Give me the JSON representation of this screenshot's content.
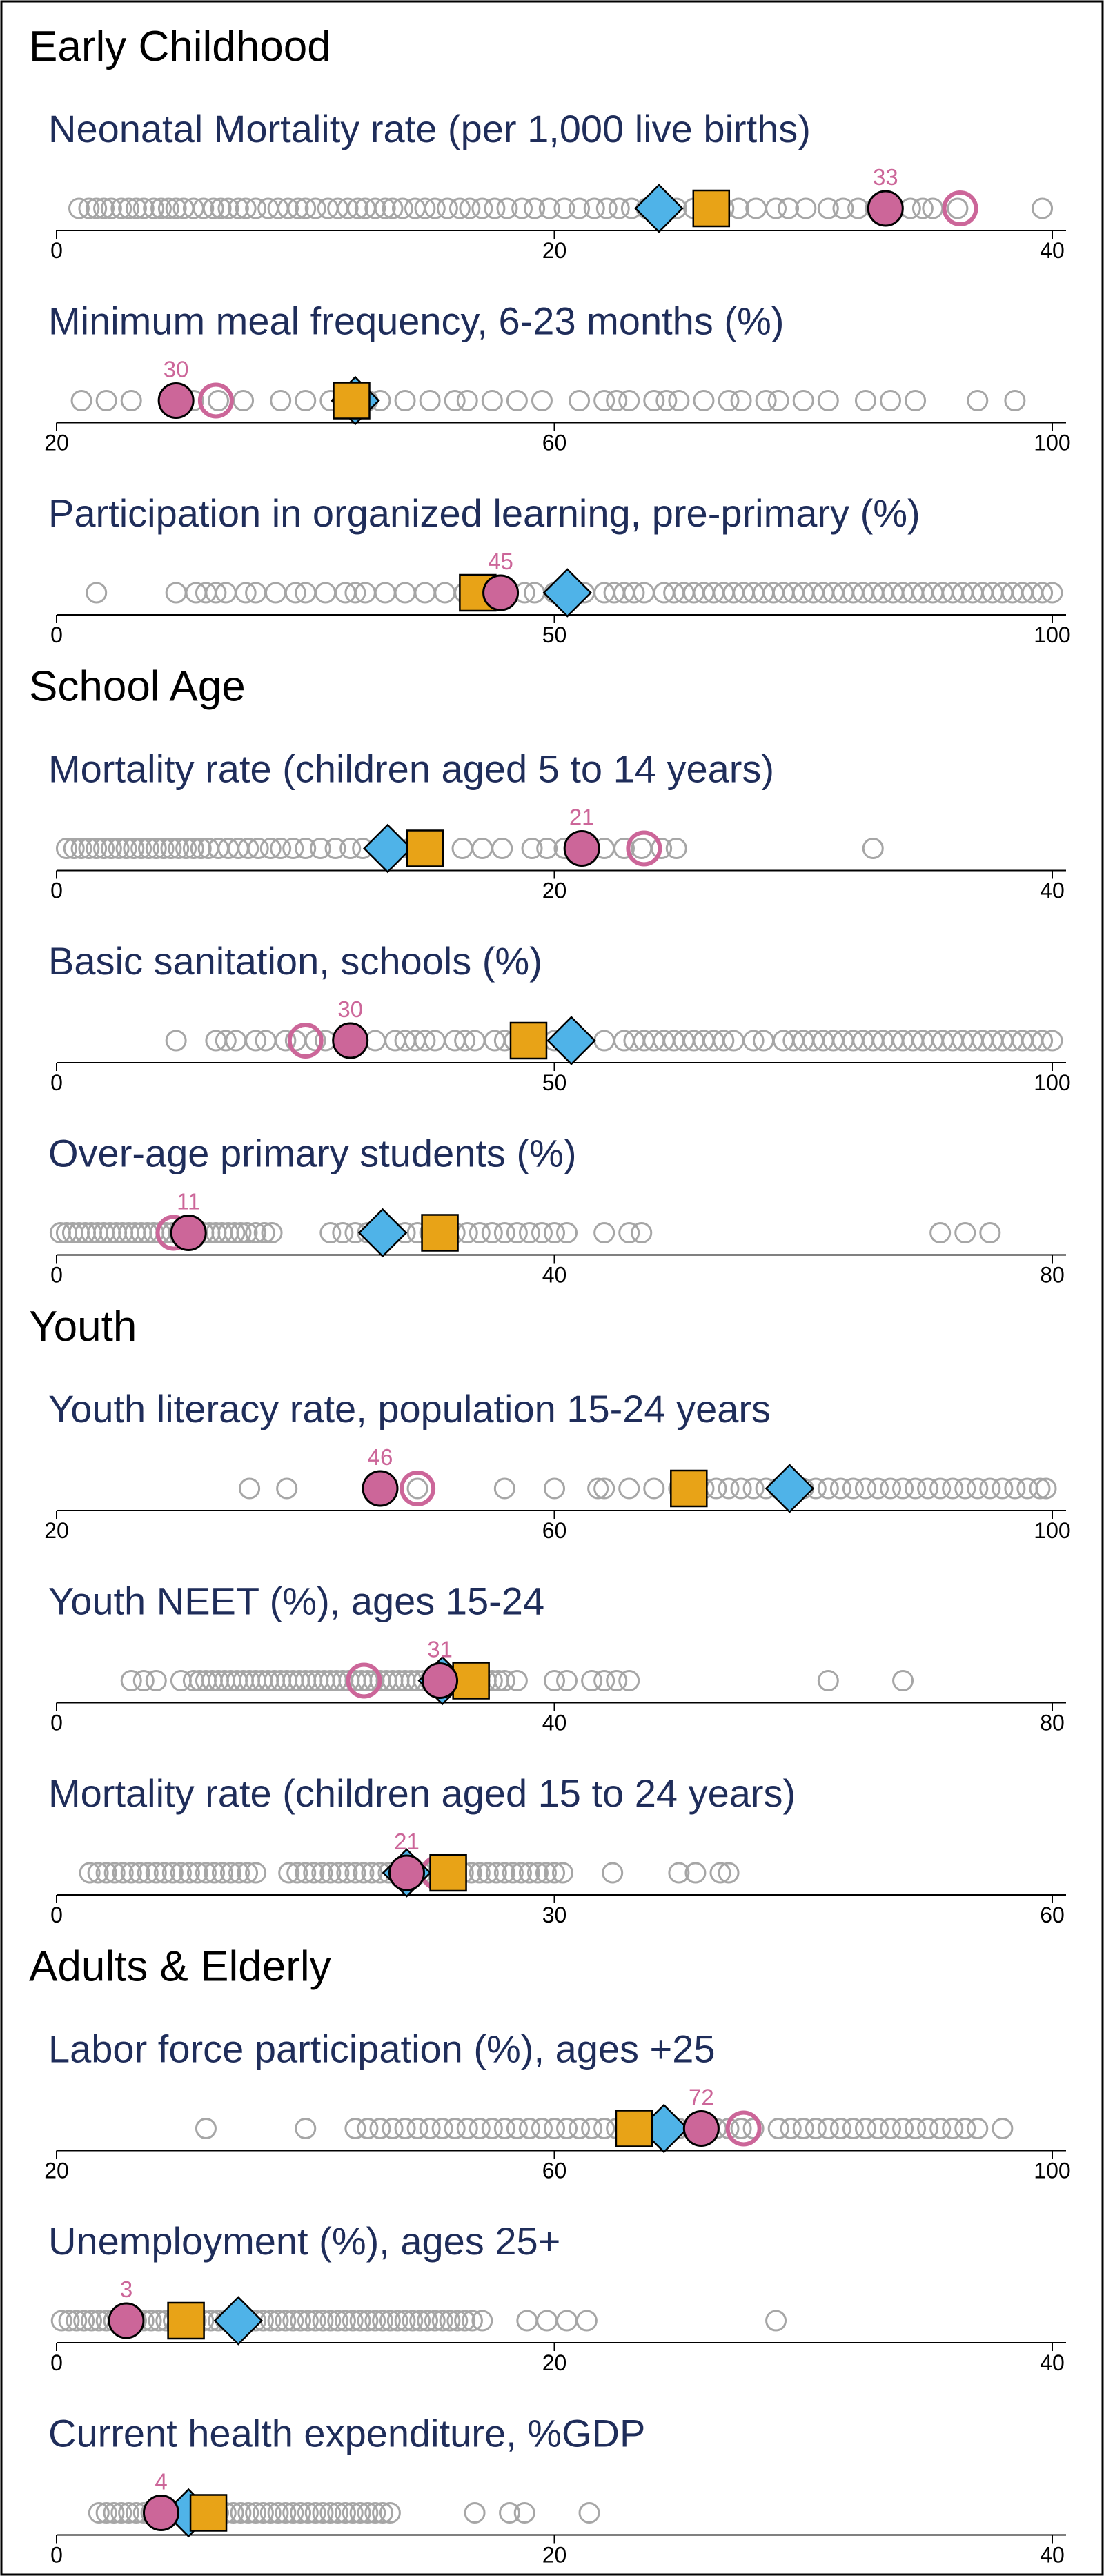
{
  "colors": {
    "others": "#a6a6a6",
    "country": "#cc6699",
    "diamond": "#4fb3e8",
    "square": "#e8a317",
    "title": "#1f2d5a",
    "frame": "#000000"
  },
  "chart_data": {
    "type": "scatter",
    "sections": [
      {
        "title": "Early Childhood",
        "panels": [
          {
            "title": "Neonatal Mortality rate (per 1,000 live births)",
            "xlim": [
              0,
              40
            ],
            "ticks": [
              "0",
              "20",
              "40"
            ],
            "others": [
              0.9,
              1.3,
              1.6,
              1.9,
              2.2,
              2.6,
              2.9,
              3.2,
              3.5,
              3.9,
              4.2,
              4.5,
              4.8,
              5.1,
              5.5,
              5.9,
              6.3,
              6.6,
              6.9,
              7.3,
              7.6,
              8.0,
              8.5,
              8.9,
              9.3,
              9.7,
              10.0,
              10.4,
              10.9,
              11.3,
              11.7,
              12.1,
              12.4,
              12.8,
              13.2,
              13.5,
              13.9,
              14.4,
              14.8,
              15.2,
              15.7,
              16.2,
              16.6,
              17.1,
              17.6,
              18.1,
              18.7,
              19.2,
              19.8,
              20.4,
              21.0,
              21.6,
              22.1,
              22.6,
              23.1,
              23.7,
              24.3,
              24.9,
              25.6,
              26.2,
              26.8,
              27.4,
              28.1,
              28.9,
              29.4,
              30.1,
              31.0,
              31.6,
              32.2,
              32.9,
              33.6,
              34.3,
              34.8,
              35.2,
              36.2,
              39.6
            ],
            "country": {
              "value": 33.3,
              "label": "33"
            },
            "hollow": 36.3,
            "diamond": 24.2,
            "square": 26.3
          },
          {
            "title": "Minimum meal frequency, 6-23 months (%)",
            "xlim": [
              20,
              100
            ],
            "ticks": [
              "20",
              "60",
              "100"
            ],
            "others": [
              22,
              24,
              26,
              29,
              31,
              33,
              35,
              38,
              40,
              42,
              43,
              45,
              46,
              48,
              50,
              52,
              53,
              55,
              57,
              59,
              62,
              64,
              65,
              66,
              68,
              69,
              70,
              72,
              74,
              75,
              77,
              78,
              80,
              82,
              85,
              87,
              89,
              94,
              97
            ],
            "country": {
              "value": 29.6,
              "label": "30"
            },
            "hollow": 32.8,
            "diamond": 44.0,
            "square": 43.7
          },
          {
            "title": "Participation in organized learning,  pre-primary (%)",
            "xlim": [
              0,
              100
            ],
            "ticks": [
              "0",
              "50",
              "100"
            ],
            "others": [
              4,
              12,
              14,
              15,
              16,
              17,
              19,
              20,
              22,
              24,
              25,
              27,
              29,
              30,
              31,
              33,
              35,
              37,
              39,
              41,
              43,
              45,
              47,
              48,
              50,
              52,
              53,
              55,
              56,
              57,
              58,
              59,
              61,
              62,
              63,
              64,
              65,
              66,
              67,
              68,
              69,
              70,
              71,
              72,
              73,
              74,
              75,
              76,
              77,
              78,
              79,
              80,
              81,
              82,
              83,
              84,
              85,
              86,
              87,
              88,
              89,
              90,
              91,
              92,
              93,
              94,
              95,
              96,
              97,
              98,
              99,
              100
            ],
            "country": {
              "value": 44.6,
              "label": "45"
            },
            "hollow": 42.7,
            "diamond": 51.3,
            "square": 42.3
          }
        ]
      },
      {
        "title": "School Age",
        "panels": [
          {
            "title": "Mortality rate (children aged 5 to 14 years)",
            "xlim": [
              0,
              40
            ],
            "ticks": [
              "0",
              "20",
              "40"
            ],
            "others": [
              0.4,
              0.7,
              1.0,
              1.3,
              1.6,
              1.9,
              2.2,
              2.5,
              2.8,
              3.1,
              3.4,
              3.7,
              4.0,
              4.3,
              4.6,
              4.9,
              5.2,
              5.5,
              5.8,
              6.1,
              6.5,
              6.9,
              7.3,
              7.7,
              8.1,
              8.6,
              9.0,
              9.5,
              10.0,
              10.6,
              11.2,
              11.8,
              12.3,
              13.0,
              13.5,
              14.2,
              15.0,
              16.3,
              17.1,
              17.9,
              19.1,
              19.7,
              20.4,
              21.2,
              22.0,
              22.8,
              23.5,
              24.3,
              24.9,
              32.8
            ],
            "country": {
              "value": 21.1,
              "label": "21"
            },
            "hollow": 23.6,
            "diamond": 13.3,
            "square": 14.8
          },
          {
            "title": "Basic sanitation, schools (%)",
            "xlim": [
              0,
              100
            ],
            "ticks": [
              "0",
              "50",
              "100"
            ],
            "others": [
              12,
              16,
              17,
              18,
              20,
              21,
              23,
              24,
              26,
              27,
              30,
              32,
              34,
              35,
              36,
              37,
              38,
              40,
              41,
              42,
              44,
              45,
              46,
              48,
              50,
              52,
              55,
              57,
              58,
              59,
              60,
              61,
              62,
              63,
              64,
              65,
              66,
              67,
              68,
              70,
              71,
              73,
              74,
              75,
              76,
              77,
              78,
              79,
              80,
              81,
              82,
              83,
              84,
              85,
              86,
              87,
              88,
              89,
              90,
              91,
              92,
              93,
              94,
              95,
              96,
              97,
              98,
              99,
              100
            ],
            "country": {
              "value": 29.5,
              "label": "30"
            },
            "hollow": 25.0,
            "diamond": 51.7,
            "square": 47.4
          },
          {
            "title": "Over-age primary students (%)",
            "xlim": [
              0,
              80
            ],
            "ticks": [
              "0",
              "40",
              "80"
            ],
            "others": [
              0.3,
              0.8,
              1.3,
              1.8,
              2.3,
              2.8,
              3.3,
              3.8,
              4.3,
              4.8,
              5.3,
              5.8,
              6.3,
              6.8,
              7.3,
              7.8,
              8.3,
              8.8,
              9.3,
              9.8,
              10.3,
              10.8,
              11.3,
              11.8,
              12.3,
              12.8,
              13.3,
              13.8,
              14.3,
              14.8,
              15.3,
              16.0,
              16.7,
              17.3,
              22,
              23,
              24,
              25,
              26,
              27,
              28,
              29,
              30,
              31,
              32,
              33,
              34,
              35,
              36,
              37,
              38,
              39,
              40,
              41,
              44,
              46,
              47,
              71,
              73,
              75
            ],
            "country": {
              "value": 10.6,
              "label": "11"
            },
            "hollow": 9.4,
            "diamond": 26.2,
            "square": 30.8
          }
        ]
      },
      {
        "title": "Youth",
        "panels": [
          {
            "title": "Youth literacy rate, population 15-24 years",
            "xlim": [
              20,
              100
            ],
            "ticks": [
              "20",
              "60",
              "100"
            ],
            "others": [
              35.5,
              38.5,
              46.5,
              49,
              56,
              60,
              63.5,
              64,
              66,
              68,
              70,
              71,
              72,
              73,
              74,
              75,
              76,
              77,
              78,
              79,
              80,
              81,
              82,
              83,
              84,
              85,
              86,
              87,
              88,
              89,
              90,
              91,
              92,
              93,
              94,
              95,
              96,
              97,
              98,
              99,
              99.5
            ],
            "country": {
              "value": 46.0,
              "label": "46"
            },
            "hollow": 49.0,
            "diamond": 78.9,
            "square": 70.8
          },
          {
            "title": "Youth NEET (%), ages 15-24",
            "xlim": [
              0,
              80
            ],
            "ticks": [
              "0",
              "40",
              "80"
            ],
            "others": [
              6,
              7,
              8,
              10,
              11,
              11.5,
              12,
              12.5,
              13,
              13.5,
              14,
              14.5,
              15,
              15.5,
              16,
              16.5,
              17,
              17.5,
              18,
              18.5,
              19,
              19.5,
              20,
              20.5,
              21,
              21.5,
              22,
              22.5,
              23,
              23.5,
              24,
              24.5,
              25,
              25.5,
              26,
              26.5,
              27,
              27.5,
              28,
              28.5,
              29,
              29.5,
              30,
              30.5,
              31,
              31.5,
              32,
              32.5,
              33,
              33.5,
              34,
              34.5,
              35,
              35.5,
              36,
              37,
              40,
              41,
              43,
              44,
              45,
              46,
              62,
              68
            ],
            "country": {
              "value": 30.8,
              "label": "31"
            },
            "hollow": 24.7,
            "diamond": 31.0,
            "square": 33.3
          },
          {
            "title": "Mortality rate (children aged 15 to 24 years)",
            "xlim": [
              0,
              60
            ],
            "ticks": [
              "0",
              "30",
              "60"
            ],
            "others": [
              2.0,
              2.5,
              3.0,
              3.5,
              4.0,
              4.5,
              5.0,
              5.5,
              6.0,
              6.5,
              7.0,
              7.5,
              8.0,
              8.5,
              9.0,
              9.5,
              10.0,
              10.5,
              11.0,
              11.5,
              12.0,
              14.0,
              14.5,
              15.0,
              15.5,
              16.0,
              16.5,
              17.0,
              17.5,
              18.0,
              18.5,
              19.0,
              19.5,
              20.0,
              20.5,
              21.0,
              21.5,
              22.0,
              22.5,
              23.0,
              23.5,
              24.0,
              24.5,
              25.0,
              25.5,
              26.0,
              26.5,
              27.0,
              27.5,
              28.0,
              28.5,
              29.0,
              29.5,
              30.0,
              30.5,
              33.5,
              37.5,
              38.5,
              40.0,
              40.5
            ],
            "country": {
              "value": 21.1,
              "label": "21"
            },
            "hollow": 23.0,
            "diamond": 21.1,
            "square": 23.6
          }
        ]
      },
      {
        "title": "Adults & Elderly",
        "panels": [
          {
            "title": "Labor force participation (%), ages +25",
            "xlim": [
              20,
              100
            ],
            "ticks": [
              "20",
              "60",
              "100"
            ],
            "others": [
              32,
              40,
              44,
              45,
              46,
              47,
              48,
              49,
              50,
              51,
              52,
              53,
              54,
              55,
              56,
              57,
              58,
              59,
              60,
              61,
              62,
              63,
              64,
              65,
              66,
              67,
              68,
              69,
              70,
              71,
              72,
              73,
              74,
              75,
              76,
              78,
              79,
              80,
              81,
              82,
              83,
              84,
              85,
              86,
              87,
              88,
              89,
              90,
              91,
              92,
              93,
              94,
              96
            ],
            "country": {
              "value": 71.8,
              "label": "72"
            },
            "hollow": 75.2,
            "diamond": 68.8,
            "square": 66.4
          },
          {
            "title": "Unemployment (%), ages 25+",
            "xlim": [
              0,
              40
            ],
            "ticks": [
              "0",
              "20",
              "40"
            ],
            "others": [
              0.2,
              0.5,
              0.8,
              1.1,
              1.4,
              1.7,
              2.0,
              2.3,
              2.6,
              2.9,
              3.2,
              3.5,
              3.8,
              4.1,
              4.4,
              4.7,
              5.0,
              5.3,
              5.6,
              5.9,
              6.2,
              6.5,
              6.8,
              7.1,
              7.4,
              7.7,
              8.0,
              8.3,
              8.6,
              8.9,
              9.2,
              9.5,
              9.8,
              10.1,
              10.4,
              10.7,
              11.0,
              11.3,
              11.6,
              11.9,
              12.2,
              12.5,
              12.8,
              13.1,
              13.4,
              13.7,
              14.0,
              14.3,
              14.6,
              14.9,
              15.2,
              15.5,
              15.8,
              16.1,
              16.4,
              16.7,
              17.1,
              18.9,
              19.7,
              20.5,
              21.3,
              28.9
            ],
            "country": {
              "value": 2.8,
              "label": "3"
            },
            "hollow": 2.8,
            "diamond": 7.3,
            "square": 5.2
          },
          {
            "title": "Current health expenditure, %GDP",
            "xlim": [
              0,
              40
            ],
            "ticks": [
              "0",
              "20",
              "40"
            ],
            "others": [
              1.7,
              2.0,
              2.3,
              2.6,
              2.9,
              3.2,
              3.5,
              3.8,
              4.1,
              4.4,
              4.7,
              5.0,
              5.3,
              5.6,
              5.9,
              6.2,
              6.5,
              6.8,
              7.1,
              7.4,
              7.7,
              8.0,
              8.3,
              8.6,
              8.9,
              9.2,
              9.5,
              9.8,
              10.1,
              10.4,
              10.7,
              11.0,
              11.3,
              11.6,
              11.9,
              12.2,
              12.5,
              12.8,
              13.1,
              13.4,
              16.8,
              18.2,
              18.8,
              21.4
            ],
            "country": {
              "value": 4.2,
              "label": "4"
            },
            "hollow": 4.2,
            "diamond": 5.3,
            "square": 6.1
          }
        ]
      }
    ]
  }
}
